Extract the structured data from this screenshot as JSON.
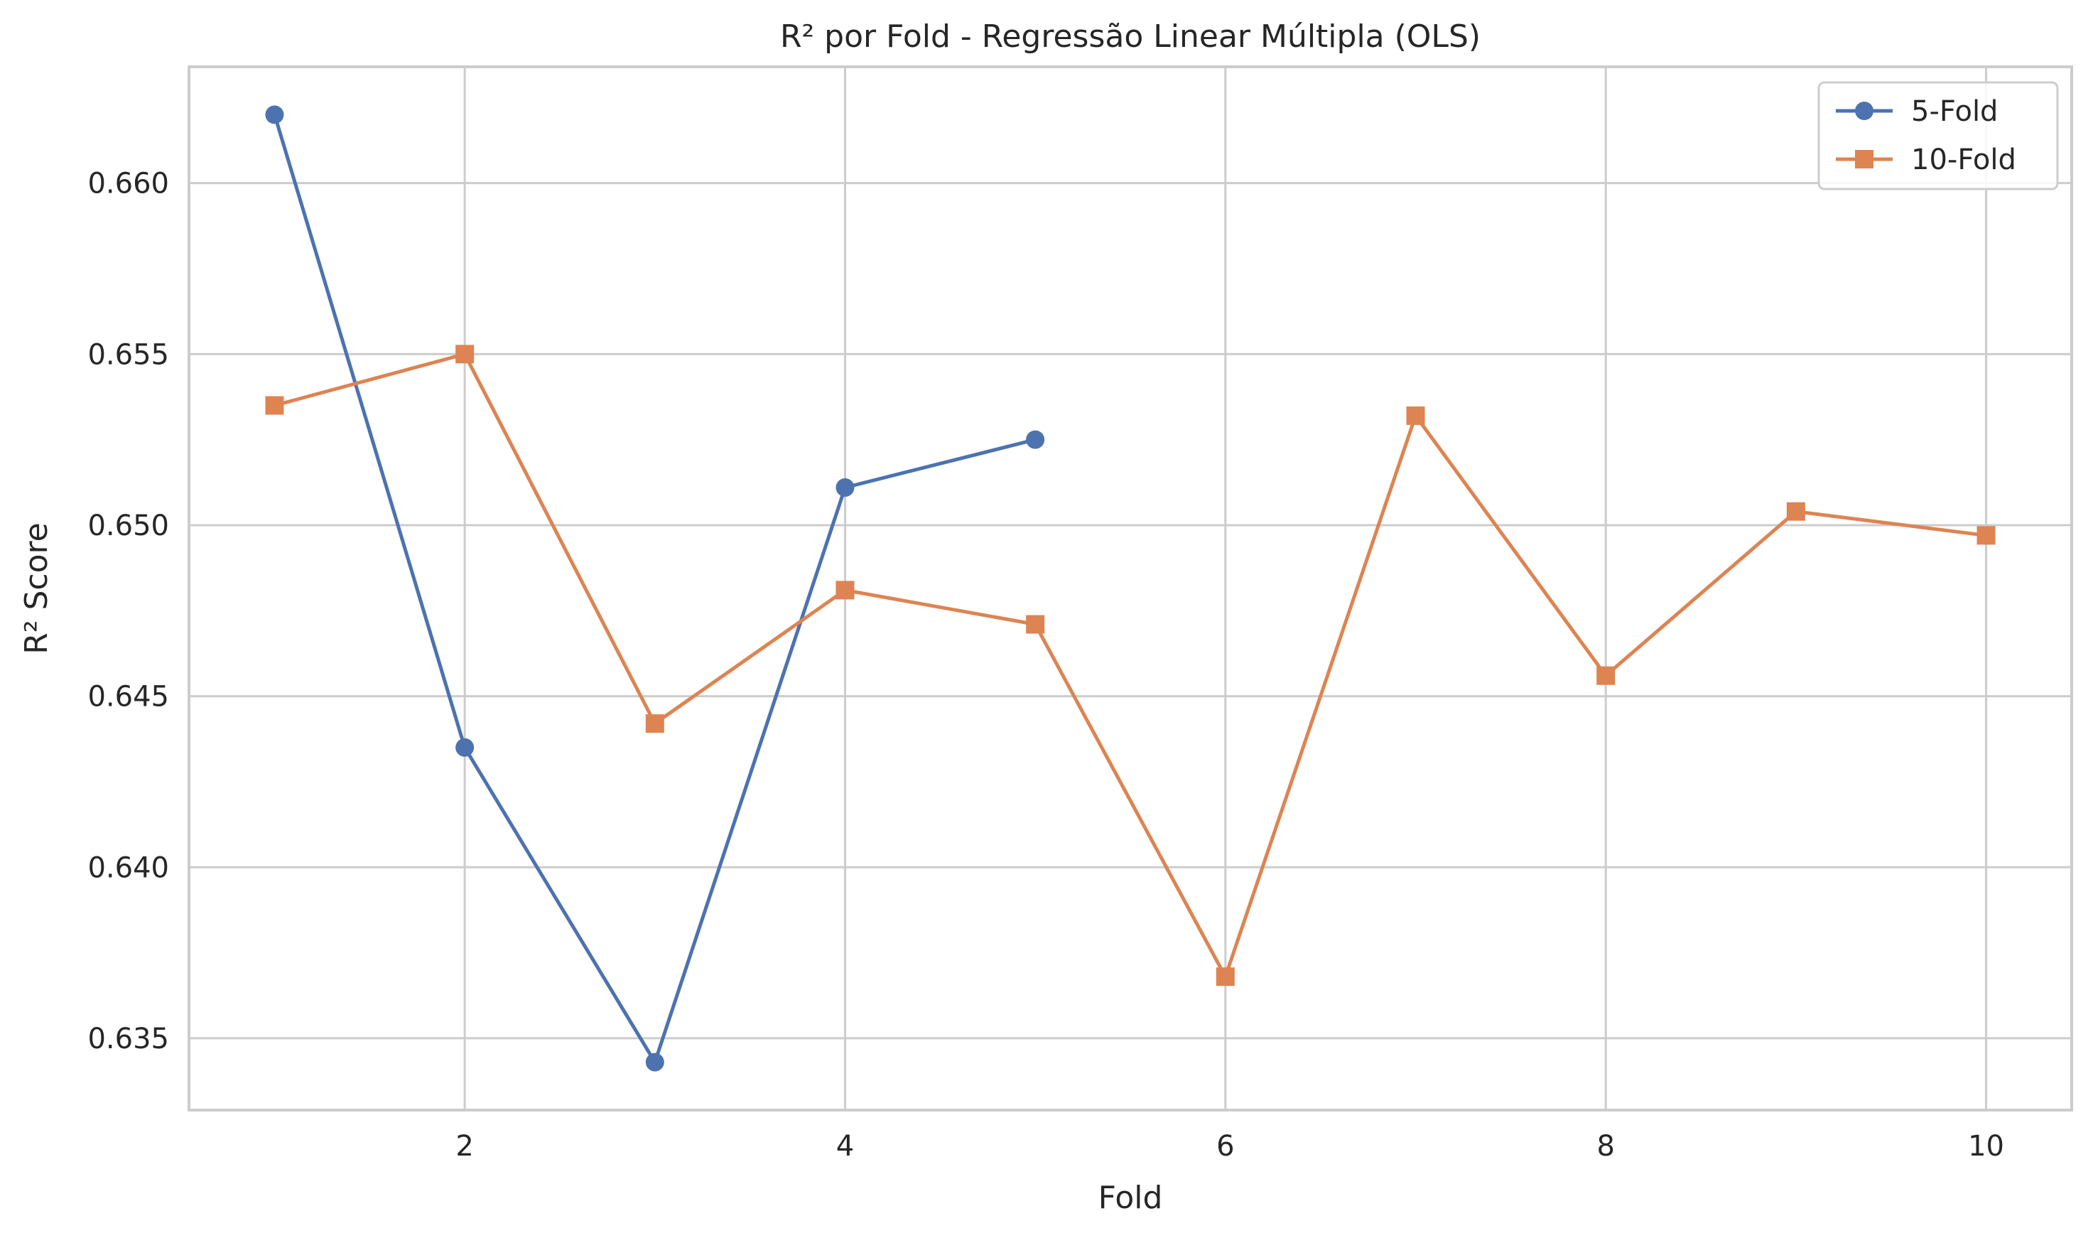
{
  "chart_data": {
    "type": "line",
    "title": "R² por Fold - Regressão Linear Múltipla (OLS)",
    "xlabel": "Fold",
    "ylabel": "R² Score",
    "xlim": [
      0.55,
      10.45
    ],
    "ylim": [
      0.6329,
      0.6634
    ],
    "xticks": [
      2,
      4,
      6,
      8,
      10
    ],
    "xtick_labels": [
      "2",
      "4",
      "6",
      "8",
      "10"
    ],
    "yticks": [
      0.635,
      0.64,
      0.645,
      0.65,
      0.655,
      0.66
    ],
    "ytick_labels": [
      "0.635",
      "0.640",
      "0.645",
      "0.650",
      "0.655",
      "0.660"
    ],
    "grid": true,
    "legend_position": "top-right",
    "series": [
      {
        "name": "5-Fold",
        "marker": "circle",
        "color": "#4c72b0",
        "x": [
          1,
          2,
          3,
          4,
          5
        ],
        "values": [
          0.662,
          0.6435,
          0.6343,
          0.6511,
          0.6525
        ]
      },
      {
        "name": "10-Fold",
        "marker": "square",
        "color": "#dd8452",
        "x": [
          1,
          2,
          3,
          4,
          5,
          6,
          7,
          8,
          9,
          10
        ],
        "values": [
          0.6535,
          0.655,
          0.6442,
          0.6481,
          0.6471,
          0.6368,
          0.6532,
          0.6456,
          0.6504,
          0.6497
        ]
      }
    ]
  }
}
